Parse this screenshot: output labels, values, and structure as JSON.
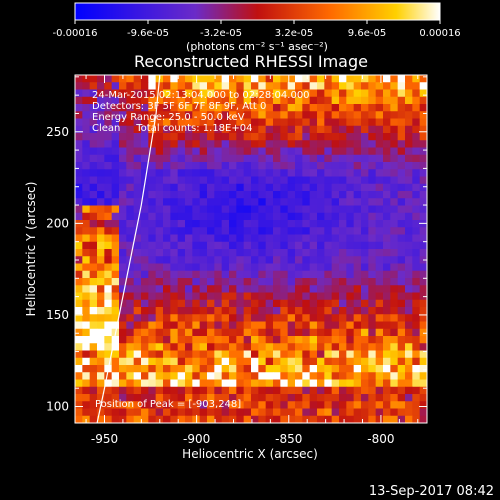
{
  "chart_data": {
    "type": "heatmap",
    "title": "Reconstructed RHESSI Image",
    "xlabel": "Heliocentric X (arcsec)",
    "ylabel": "Heliocentric Y (arcsec)",
    "xlim": [
      -966,
      -775
    ],
    "ylim": [
      91,
      281
    ],
    "x_ticks": [
      -950,
      -900,
      -850,
      -800
    ],
    "x_tick_labels": [
      "-950",
      "-900",
      "-850",
      "-800"
    ],
    "y_ticks": [
      100,
      150,
      200,
      250
    ],
    "y_tick_labels": [
      "100",
      "150",
      "200",
      "250"
    ],
    "grid": false,
    "colorbar": {
      "range": [
        -0.00016,
        0.00016
      ],
      "ticks": [
        -0.00016,
        -9.6e-05,
        -3.2e-05,
        3.2e-05,
        9.6e-05,
        0.00016
      ],
      "tick_labels": [
        "-0.00016",
        "-9.6e-05",
        "-3.2e-05",
        "3.2e-05",
        "9.6e-05",
        "0.00016"
      ],
      "units": "(photons cm⁻² s⁻¹ asec⁻²)",
      "colors": [
        "#0000ff",
        "#6b2bc8",
        "#c01010",
        "#ff6a00",
        "#ffd000",
        "#ffffff"
      ]
    },
    "annotations": [
      "24-Mar-2015 02:13:04.000 to 02:28:04.000",
      "Detectors: 3F 5F 6F 7F 8F 9F, Att 0",
      "Energy Range: 25.0 - 50.0 keV",
      "Clean     Total counts: 1.18E+04"
    ],
    "peak_label": "Position of Peak = [-903,248]",
    "peak_position": [
      -903,
      248
    ],
    "limb_curve": {
      "x": [
        -954,
        -950,
        -945,
        -940,
        -935,
        -930,
        -926,
        -922,
        -920
      ],
      "y": [
        91,
        110,
        135,
        160,
        185,
        210,
        235,
        260,
        281
      ]
    },
    "image_grid": {
      "nx": 48,
      "ny": 48
    }
  },
  "footer": {
    "timestamp": "13-Sep-2017 08:42"
  }
}
